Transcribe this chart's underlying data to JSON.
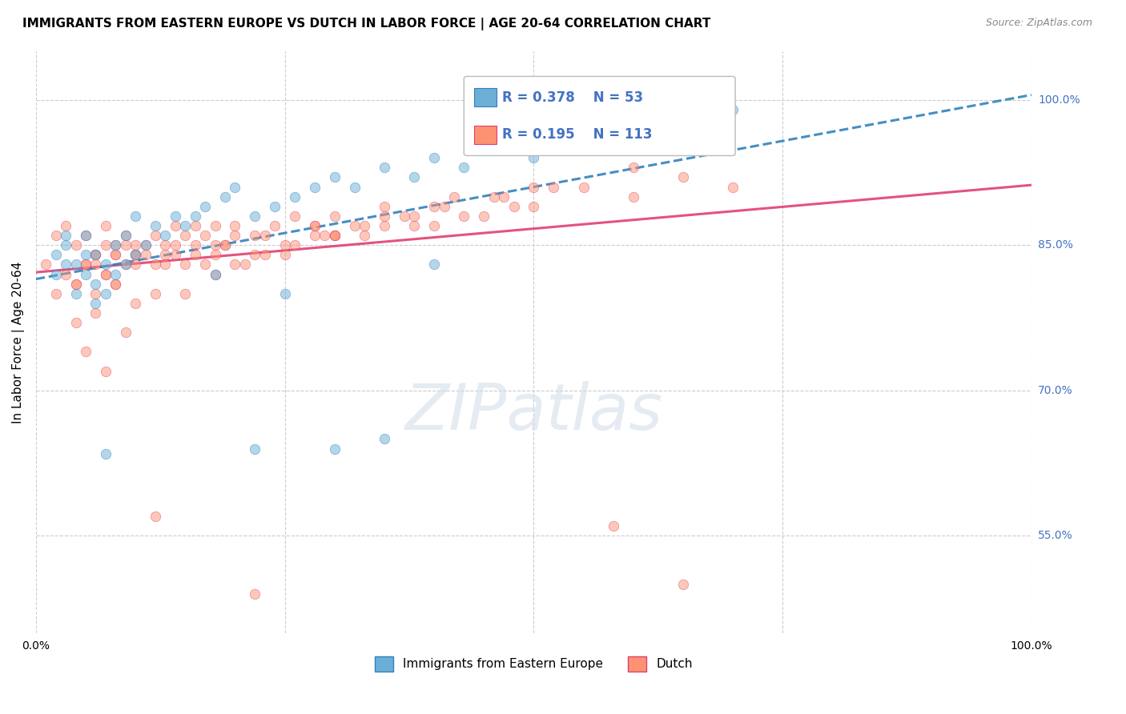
{
  "title": "IMMIGRANTS FROM EASTERN EUROPE VS DUTCH IN LABOR FORCE | AGE 20-64 CORRELATION CHART",
  "source": "Source: ZipAtlas.com",
  "ylabel": "In Labor Force | Age 20-64",
  "xlim": [
    0.0,
    1.0
  ],
  "ylim": [
    0.45,
    1.05
  ],
  "y_tick_labels": [
    "55.0%",
    "70.0%",
    "85.0%",
    "100.0%"
  ],
  "y_tick_positions": [
    0.55,
    0.7,
    0.85,
    1.0
  ],
  "legend_labels": [
    "Immigrants from Eastern Europe",
    "Dutch"
  ],
  "blue_R": "0.378",
  "blue_N": "53",
  "pink_R": "0.195",
  "pink_N": "113",
  "blue_scatter_x": [
    0.02,
    0.02,
    0.03,
    0.03,
    0.03,
    0.04,
    0.04,
    0.05,
    0.05,
    0.05,
    0.06,
    0.06,
    0.06,
    0.07,
    0.07,
    0.08,
    0.08,
    0.09,
    0.09,
    0.1,
    0.1,
    0.11,
    0.12,
    0.13,
    0.14,
    0.15,
    0.16,
    0.17,
    0.19,
    0.2,
    0.22,
    0.24,
    0.26,
    0.28,
    0.3,
    0.32,
    0.35,
    0.38,
    0.4,
    0.43,
    0.47,
    0.5,
    0.55,
    0.6,
    0.65,
    0.7,
    0.3,
    0.35,
    0.07,
    0.22,
    0.18,
    0.25,
    0.4
  ],
  "blue_scatter_y": [
    0.82,
    0.84,
    0.83,
    0.85,
    0.86,
    0.8,
    0.83,
    0.82,
    0.84,
    0.86,
    0.79,
    0.81,
    0.84,
    0.8,
    0.83,
    0.82,
    0.85,
    0.83,
    0.86,
    0.84,
    0.88,
    0.85,
    0.87,
    0.86,
    0.88,
    0.87,
    0.88,
    0.89,
    0.9,
    0.91,
    0.88,
    0.89,
    0.9,
    0.91,
    0.92,
    0.91,
    0.93,
    0.92,
    0.94,
    0.93,
    0.95,
    0.94,
    0.96,
    0.97,
    0.98,
    0.99,
    0.64,
    0.65,
    0.635,
    0.64,
    0.82,
    0.8,
    0.83
  ],
  "pink_scatter_x": [
    0.01,
    0.02,
    0.02,
    0.03,
    0.03,
    0.04,
    0.04,
    0.05,
    0.05,
    0.06,
    0.06,
    0.07,
    0.07,
    0.08,
    0.08,
    0.09,
    0.09,
    0.1,
    0.11,
    0.12,
    0.13,
    0.14,
    0.15,
    0.16,
    0.17,
    0.18,
    0.19,
    0.2,
    0.22,
    0.24,
    0.26,
    0.28,
    0.3,
    0.32,
    0.35,
    0.38,
    0.4,
    0.43,
    0.47,
    0.5,
    0.55,
    0.6,
    0.65,
    0.7,
    0.25,
    0.3,
    0.35,
    0.1,
    0.12,
    0.08,
    0.07,
    0.09,
    0.05,
    0.04,
    0.06,
    0.15,
    0.18,
    0.22,
    0.28,
    0.35,
    0.42,
    0.5,
    0.6,
    0.07,
    0.1,
    0.13,
    0.16,
    0.2,
    0.25,
    0.3,
    0.38,
    0.45,
    0.08,
    0.06,
    0.1,
    0.14,
    0.18,
    0.23,
    0.28,
    0.33,
    0.4,
    0.48,
    0.2,
    0.3,
    0.04,
    0.05,
    0.06,
    0.07,
    0.08,
    0.09,
    0.1,
    0.11,
    0.12,
    0.13,
    0.14,
    0.15,
    0.16,
    0.17,
    0.18,
    0.19,
    0.21,
    0.23,
    0.26,
    0.29,
    0.33,
    0.37,
    0.41,
    0.46,
    0.52,
    0.58,
    0.65,
    0.12,
    0.22
  ],
  "pink_scatter_y": [
    0.83,
    0.8,
    0.86,
    0.82,
    0.87,
    0.81,
    0.85,
    0.83,
    0.86,
    0.8,
    0.84,
    0.82,
    0.87,
    0.81,
    0.85,
    0.83,
    0.86,
    0.84,
    0.85,
    0.86,
    0.85,
    0.87,
    0.86,
    0.87,
    0.86,
    0.87,
    0.85,
    0.87,
    0.86,
    0.87,
    0.88,
    0.87,
    0.88,
    0.87,
    0.89,
    0.88,
    0.89,
    0.88,
    0.9,
    0.89,
    0.91,
    0.9,
    0.92,
    0.91,
    0.84,
    0.86,
    0.87,
    0.79,
    0.8,
    0.81,
    0.72,
    0.76,
    0.74,
    0.77,
    0.78,
    0.8,
    0.82,
    0.84,
    0.86,
    0.88,
    0.9,
    0.91,
    0.93,
    0.82,
    0.84,
    0.83,
    0.85,
    0.86,
    0.85,
    0.86,
    0.87,
    0.88,
    0.84,
    0.83,
    0.85,
    0.84,
    0.85,
    0.86,
    0.87,
    0.86,
    0.87,
    0.89,
    0.83,
    0.86,
    0.81,
    0.83,
    0.84,
    0.85,
    0.84,
    0.85,
    0.83,
    0.84,
    0.83,
    0.84,
    0.85,
    0.83,
    0.84,
    0.83,
    0.84,
    0.85,
    0.83,
    0.84,
    0.85,
    0.86,
    0.87,
    0.88,
    0.89,
    0.9,
    0.91,
    0.56,
    0.5,
    0.57,
    0.49
  ],
  "blue_line_x": [
    0.0,
    1.0
  ],
  "blue_line_y": [
    0.815,
    1.005
  ],
  "pink_line_x": [
    0.0,
    1.0
  ],
  "pink_line_y": [
    0.822,
    0.912
  ],
  "background_color": "#ffffff",
  "grid_color": "#cccccc",
  "blue_color": "#6baed6",
  "blue_edge_color": "#3182bd",
  "pink_color": "#fc9272",
  "pink_edge_color": "#e04070",
  "scatter_size": 80,
  "scatter_alpha": 0.5
}
